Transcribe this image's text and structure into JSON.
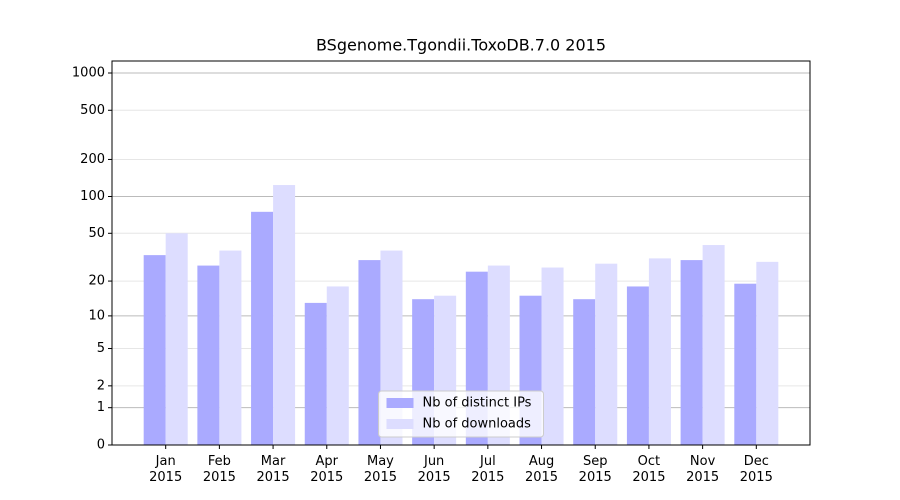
{
  "chart_data": {
    "type": "bar",
    "title": "BSgenome.Tgondii.ToxoDB.7.0 2015",
    "categories": [
      "Jan\n2015",
      "Feb\n2015",
      "Mar\n2015",
      "Apr\n2015",
      "May\n2015",
      "Jun\n2015",
      "Jul\n2015",
      "Aug\n2015",
      "Sep\n2015",
      "Oct\n2015",
      "Nov\n2015",
      "Dec\n2015"
    ],
    "series": [
      {
        "name": "Nb of distinct IPs",
        "color": "#aaaaff",
        "values": [
          33,
          27,
          75,
          13,
          30,
          14,
          24,
          15,
          14,
          18,
          30,
          19
        ]
      },
      {
        "name": "Nb of downloads",
        "color": "#ddddff",
        "values": [
          50,
          36,
          124,
          18,
          36,
          15,
          27,
          26,
          28,
          31,
          40,
          29
        ]
      }
    ],
    "y_scale": "log1p",
    "ylim": [
      0,
      1250
    ],
    "yticks": [
      0,
      1,
      2,
      5,
      10,
      20,
      50,
      100,
      200,
      500,
      1000
    ],
    "grid": true,
    "legend": "lower center"
  }
}
